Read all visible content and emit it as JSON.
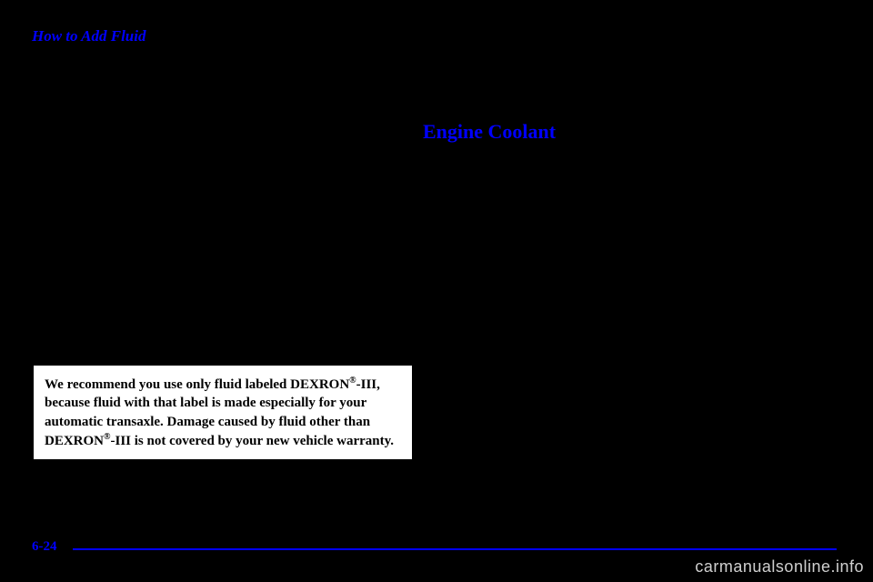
{
  "left_column": {
    "heading": "How to Add Fluid",
    "notice": {
      "text_parts": [
        "We recommend you use only fluid labeled DEXRON",
        "-III, because fluid with that label is made especially for your automatic transaxle. Damage caused by fluid other than DEXRON",
        "-III is not covered by your new vehicle warranty."
      ],
      "reg_symbol": "®"
    }
  },
  "right_column": {
    "heading": "Engine Coolant"
  },
  "page_number": "6-24",
  "watermark": "carmanualsonline.info"
}
